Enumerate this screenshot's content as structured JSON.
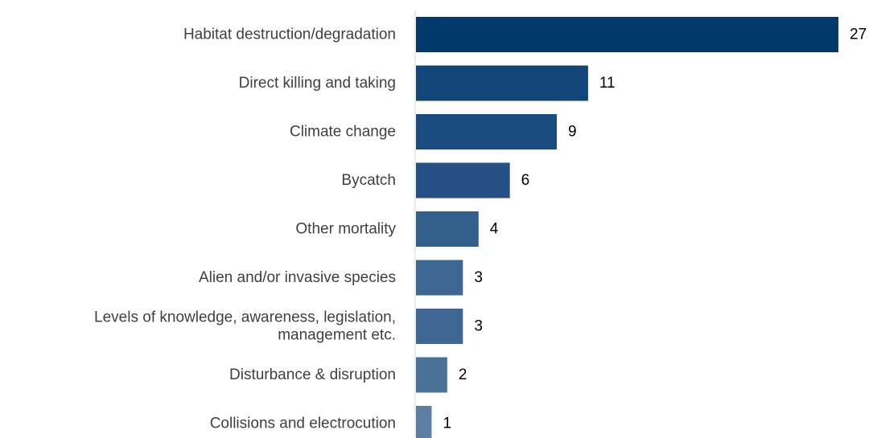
{
  "chart_data": {
    "type": "bar",
    "orientation": "horizontal",
    "categories": [
      [
        "Habitat destruction/degradation"
      ],
      [
        "Direct killing and taking"
      ],
      [
        "Climate change"
      ],
      [
        "Bycatch"
      ],
      [
        "Other mortality"
      ],
      [
        "Alien and/or invasive species"
      ],
      [
        "Levels of knowledge, awareness, legislation,",
        "management etc."
      ],
      [
        "Disturbance & disruption"
      ],
      [
        "Collisions and electrocution"
      ]
    ],
    "values": [
      27,
      11,
      9,
      6,
      4,
      3,
      3,
      2,
      1
    ],
    "value_labels": [
      "27",
      "11",
      "9",
      "6",
      "4",
      "3",
      "3",
      "2",
      "1"
    ],
    "bar_colors": [
      "#00386b",
      "#12467a",
      "#1a4c80",
      "#254f85",
      "#335f8c",
      "#3e6893",
      "#3e6893",
      "#4a7299",
      "#5c7ea3"
    ],
    "axis_line_color": "#d9d9d9",
    "xlim": [
      0,
      27
    ],
    "grid": false,
    "legend": "none",
    "data_labels": "outside-end"
  }
}
